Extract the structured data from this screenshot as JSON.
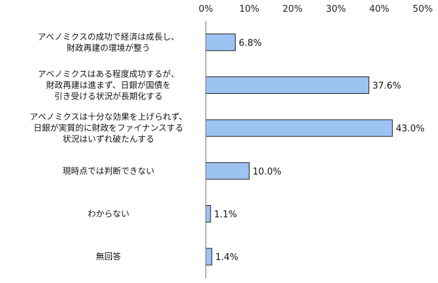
{
  "chart_data": {
    "type": "bar",
    "orientation": "horizontal",
    "title": "",
    "xlabel": "",
    "ylabel": "",
    "xlim": [
      0,
      50
    ],
    "tick_values": [
      0,
      10,
      20,
      30,
      40,
      50
    ],
    "tick_labels": [
      "0%",
      "10%",
      "20%",
      "30%",
      "40%",
      "50%"
    ],
    "grid": false,
    "legend": "none",
    "bar_color": "#9DC3F2",
    "categories": [
      [
        "アベノミクスの成功で経済は成長し、",
        "財政再建の環境が整う"
      ],
      [
        "アベノミクスはある程度成功するが、",
        "財政再建は進まず、日銀が国債を",
        "引き受ける状況が長期化する"
      ],
      [
        "アベノミクスは十分な効果を上げられず、",
        "日銀が実質的に財政をファイナンスする",
        "状況はいずれ破たんする"
      ],
      [
        "現時点では判断できない"
      ],
      [
        "わからない"
      ],
      [
        "無回答"
      ]
    ],
    "values": [
      6.8,
      37.6,
      43.0,
      10.0,
      1.1,
      1.4
    ],
    "value_labels": [
      "6.8%",
      "37.6%",
      "43.0%",
      "10.0%",
      "1.1%",
      "1.4%"
    ]
  }
}
